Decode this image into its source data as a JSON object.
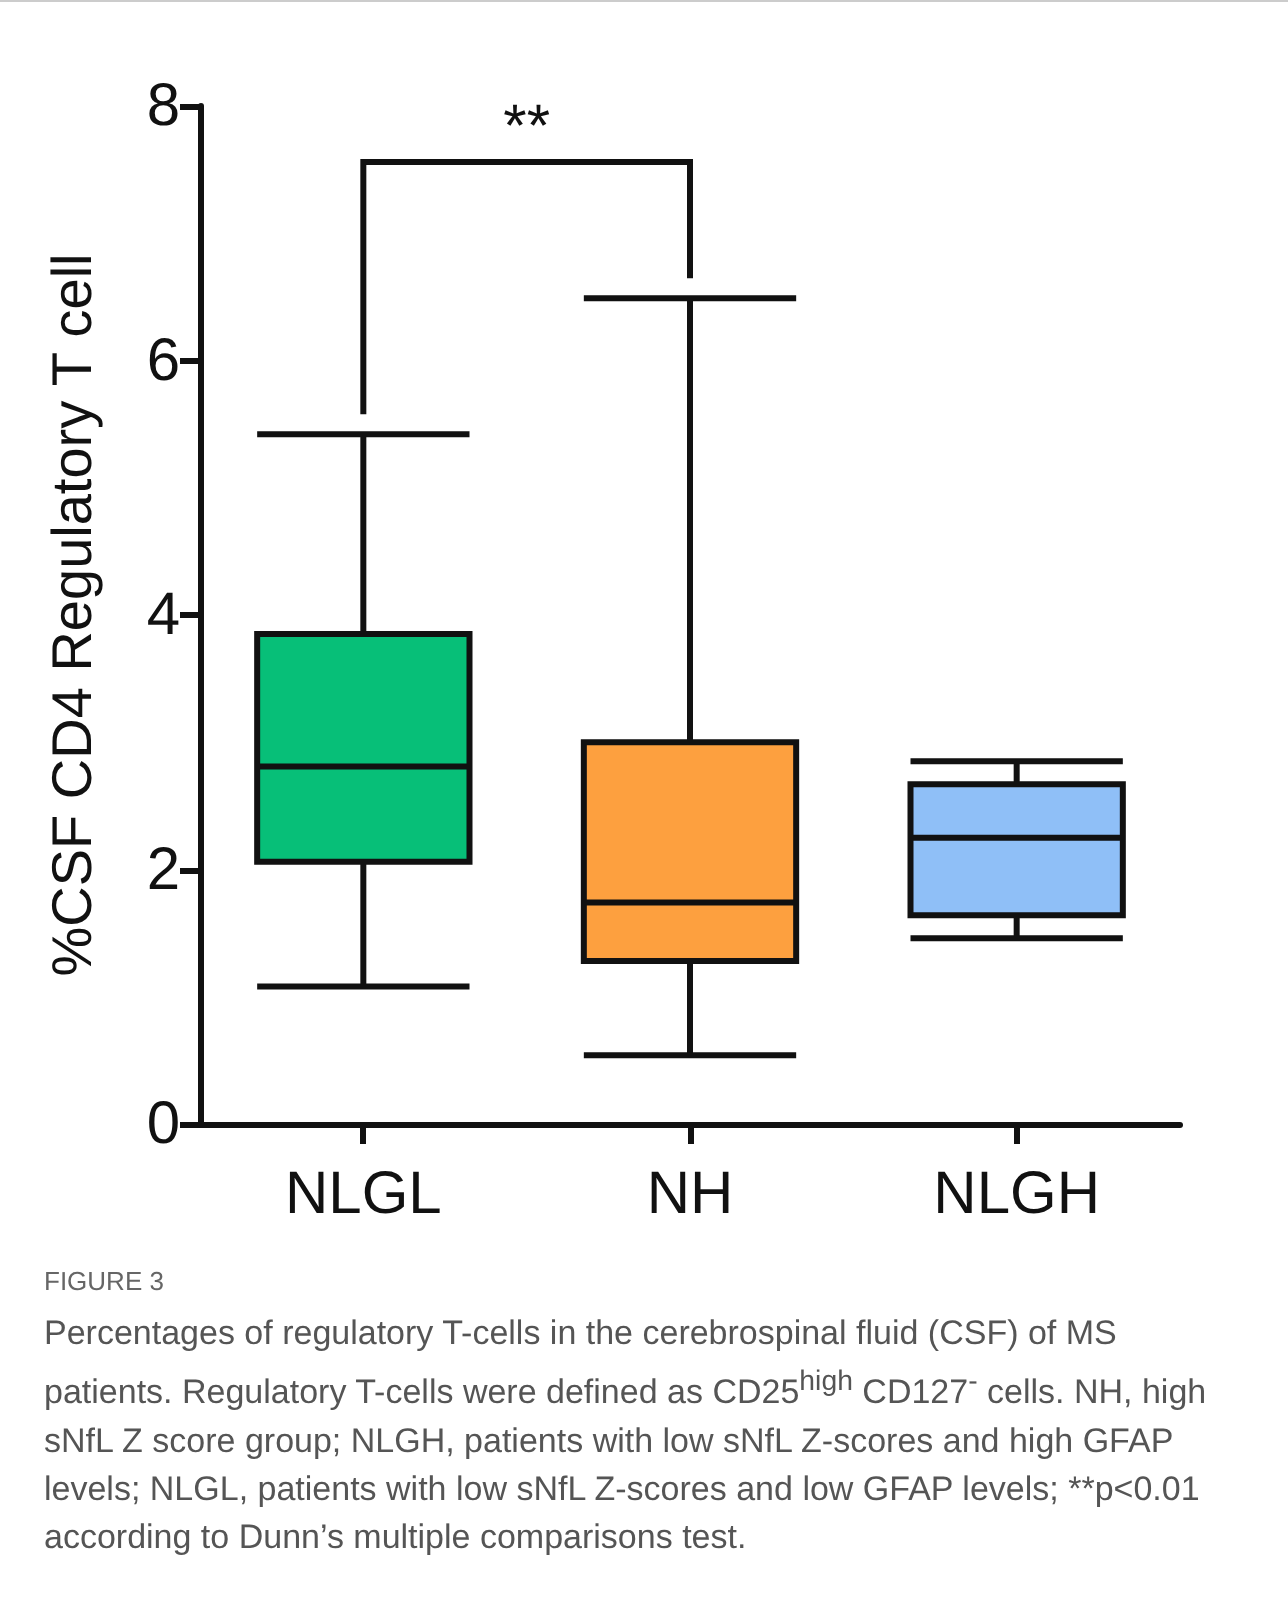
{
  "chart_data": {
    "type": "box",
    "ylabel": "%CSF CD4 Regulatory T cell",
    "categories": [
      "NLGL",
      "NH",
      "NLGH"
    ],
    "boxes": [
      {
        "low": 1.08,
        "q1": 2.06,
        "median": 2.81,
        "q3": 3.85,
        "high": 5.42
      },
      {
        "low": 0.54,
        "q1": 1.28,
        "median": 1.74,
        "q3": 3.0,
        "high": 6.49
      },
      {
        "low": 1.46,
        "q1": 1.64,
        "median": 2.25,
        "q3": 2.67,
        "high": 2.85
      }
    ],
    "colors": [
      "#07bf78",
      "#fda03f",
      "#8fbff7"
    ],
    "ylim": [
      0,
      8
    ],
    "yticks": [
      0,
      2,
      4,
      6,
      8
    ],
    "annotations": [
      "**",
      "FIGURE 3",
      "Percentages of regulatory T-cells in the cerebrospinal fluid (CSF) of MS patients. Regulatory T-cells were defined as CD25$^{high}$ CD127$^{-}$ cells. NH, high sNfL Z score group; NLGH, patients with low sNfL Z-scores and high GFAP levels; NLGL, patients with low sNfL Z-scores and low GFAP levels; **p<0.01 according to Dunn’s multiple comparisons test."
    ]
  }
}
